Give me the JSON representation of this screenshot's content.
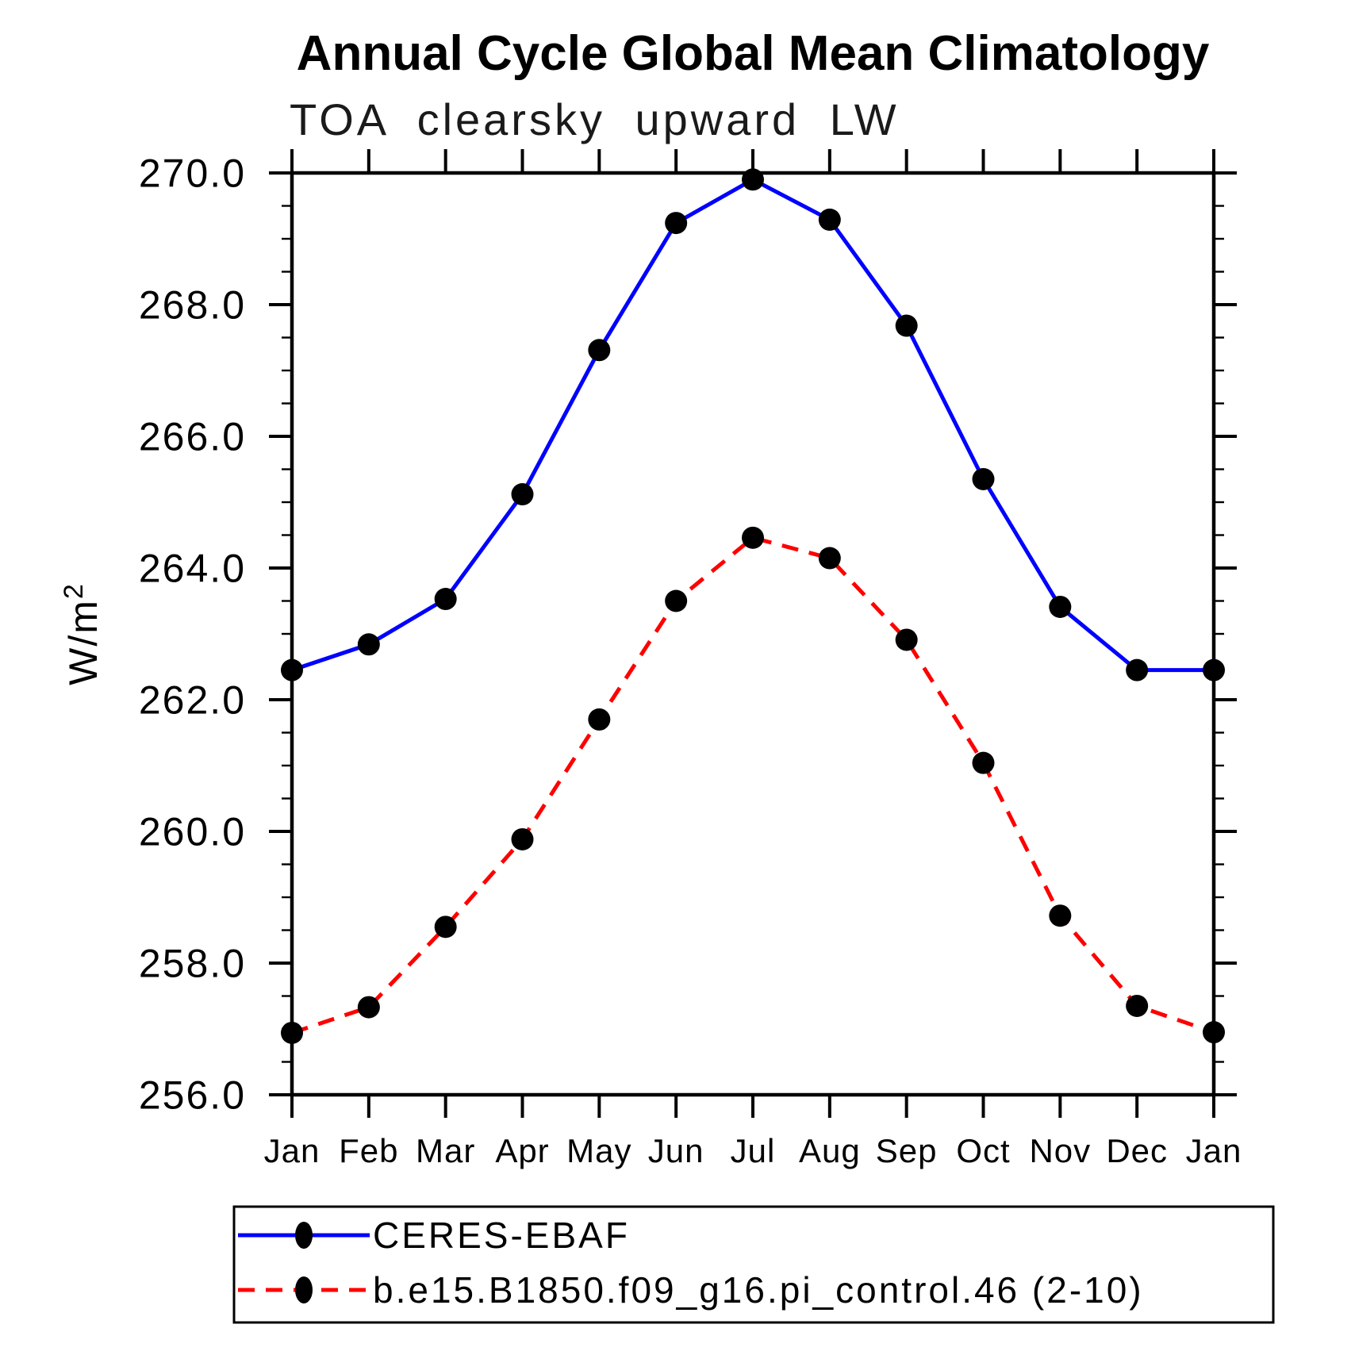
{
  "header": {
    "title": "Annual Cycle Global Mean Climatology",
    "subtitle": "TOA clearsky upward LW"
  },
  "chart_data": {
    "type": "line",
    "title": "Annual Cycle Global Mean Climatology",
    "subtitle": "TOA clearsky upward LW",
    "ylabel": {
      "base": "W/m",
      "sup": "2"
    },
    "xlabel": "",
    "categories": [
      "Jan",
      "Feb",
      "Mar",
      "Apr",
      "May",
      "Jun",
      "Jul",
      "Aug",
      "Sep",
      "Oct",
      "Nov",
      "Dec",
      "Jan"
    ],
    "series": [
      {
        "name": "CERES-EBAF",
        "color": "#0000ff",
        "line_style": "solid",
        "marker": "filled-black-circle",
        "values": [
          262.45,
          262.84,
          263.53,
          265.12,
          267.31,
          269.24,
          269.9,
          269.29,
          267.68,
          265.35,
          263.41,
          262.45,
          262.45
        ]
      },
      {
        "name": "b.e15.B1850.f09_g16.pi_control.46 (2-10)",
        "color": "#ff0000",
        "line_style": "dashed",
        "marker": "filled-black-circle",
        "values": [
          256.94,
          257.33,
          258.55,
          259.88,
          261.7,
          263.5,
          264.46,
          264.15,
          262.91,
          261.04,
          258.72,
          257.35,
          256.95
        ]
      }
    ],
    "ylim": [
      256.0,
      270.0
    ],
    "ytick_labels": [
      "256.0",
      "258.0",
      "260.0",
      "262.0",
      "264.0",
      "266.0",
      "268.0",
      "270.0"
    ],
    "ytick_step": 2.0,
    "yminor_step": 0.5,
    "grid": false,
    "axis_color": "#000000",
    "marker_color": "#000000",
    "legend_position": "bottom-left-box",
    "tick_direction": "outward"
  }
}
